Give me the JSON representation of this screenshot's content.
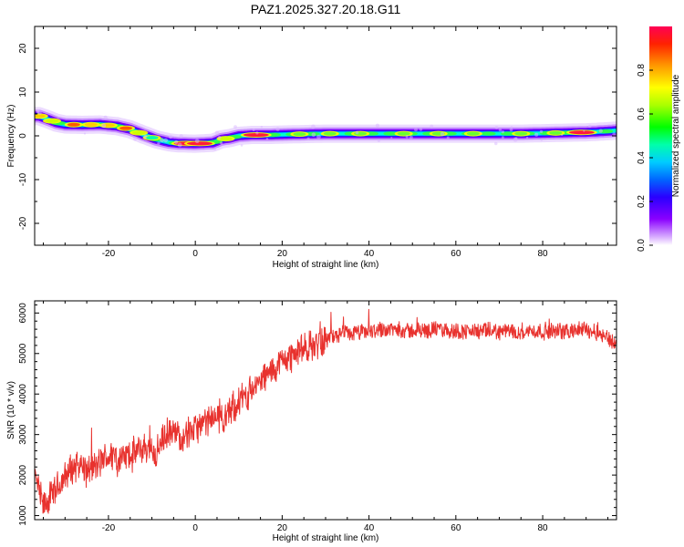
{
  "title": "PAZ1.2025.327.20.18.G11",
  "spectrogram": {
    "type": "heatmap",
    "xlabel": "Height of straight line (km)",
    "ylabel": "Frequency (Hz)",
    "xlim": [
      -37,
      97
    ],
    "ylim": [
      -25,
      25
    ],
    "xticks": [
      -20,
      0,
      20,
      40,
      60,
      80
    ],
    "yticks": [
      -20,
      -10,
      0,
      10,
      20
    ],
    "ridge": {
      "x": [
        -36,
        -34,
        -32,
        -30,
        -26,
        -22,
        -18,
        -15,
        -12,
        -9,
        -6,
        -4,
        0,
        4,
        6,
        8,
        10,
        13,
        17,
        20,
        25,
        30,
        35,
        40,
        45,
        50,
        55,
        60,
        65,
        70,
        75,
        80,
        85,
        90,
        94,
        97
      ],
      "freq": [
        4.5,
        3.8,
        3.0,
        2.6,
        2.5,
        2.6,
        2.2,
        1.5,
        0.3,
        -0.8,
        -1.5,
        -1.7,
        -1.8,
        -1.6,
        -0.8,
        -0.5,
        0.0,
        0.2,
        0.2,
        0.3,
        0.4,
        0.5,
        0.5,
        0.5,
        0.5,
        0.5,
        0.5,
        0.5,
        0.5,
        0.5,
        0.5,
        0.6,
        0.7,
        0.8,
        1.0,
        1.2
      ]
    },
    "peaks": [
      {
        "x": -36,
        "amp": 0.75
      },
      {
        "x": -33,
        "amp": 0.6
      },
      {
        "x": -28,
        "amp": 0.85
      },
      {
        "x": -24,
        "amp": 0.75
      },
      {
        "x": -20,
        "amp": 0.7
      },
      {
        "x": -16,
        "amp": 0.85
      },
      {
        "x": -13,
        "amp": 0.6
      },
      {
        "x": -10,
        "amp": 0.45
      },
      {
        "x": -2,
        "amp": 0.95
      },
      {
        "x": 1,
        "amp": 0.95
      },
      {
        "x": 7,
        "amp": 0.6
      },
      {
        "x": 14,
        "amp": 0.95
      },
      {
        "x": 24,
        "amp": 0.55
      },
      {
        "x": 31,
        "amp": 0.55
      },
      {
        "x": 38,
        "amp": 0.5
      },
      {
        "x": 48,
        "amp": 0.55
      },
      {
        "x": 56,
        "amp": 0.5
      },
      {
        "x": 64,
        "amp": 0.55
      },
      {
        "x": 75,
        "amp": 0.5
      },
      {
        "x": 83,
        "amp": 0.55
      },
      {
        "x": 89,
        "amp": 0.9
      }
    ]
  },
  "colorbar": {
    "label": "Normalized spectral amplitude",
    "ticks": [
      "0.0",
      "0.2",
      "0.4",
      "0.6",
      "0.8"
    ],
    "tick_values": [
      0.0,
      0.2,
      0.4,
      0.6,
      0.8
    ],
    "range": [
      0,
      1
    ]
  },
  "chart_data": [
    {
      "type": "heatmap",
      "title": "PAZ1.2025.327.20.18.G11",
      "xlabel": "Height of straight line (km)",
      "ylabel": "Frequency (Hz)",
      "xlim": [
        -37,
        97
      ],
      "ylim": [
        -25,
        25
      ],
      "colorbar_label": "Normalized spectral amplitude",
      "description_values": "ridge frequency vs height (see spectrogram.ridge)"
    },
    {
      "type": "line",
      "xlabel": "Height of straight line (km)",
      "ylabel": "SNR (10 * v/v)",
      "xlim": [
        -37,
        97
      ],
      "ylim": [
        900,
        6300
      ],
      "xticks": [
        -20,
        0,
        20,
        40,
        60,
        80
      ],
      "yticks": [
        1000,
        2000,
        3000,
        4000,
        5000,
        6000
      ],
      "color": "#e8322e",
      "series": [
        {
          "name": "SNR",
          "x": [
            -37,
            -35,
            -33,
            -31,
            -29,
            -27,
            -25,
            -23,
            -21,
            -19,
            -17,
            -15,
            -13,
            -11,
            -9,
            -7,
            -5,
            -3,
            -1,
            1,
            3,
            5,
            7,
            9,
            11,
            13,
            15,
            17,
            19,
            21,
            23,
            25,
            27,
            29,
            31,
            33,
            35,
            37,
            40,
            43,
            46,
            50,
            55,
            60,
            65,
            70,
            75,
            80,
            85,
            90,
            93,
            95,
            97
          ],
          "y": [
            2000,
            1200,
            1500,
            1800,
            2100,
            2300,
            2100,
            2200,
            2400,
            2500,
            2400,
            2500,
            2600,
            2700,
            2500,
            3000,
            3000,
            3000,
            3100,
            3200,
            3300,
            3500,
            3400,
            3700,
            3900,
            4100,
            4300,
            4500,
            4700,
            4900,
            5000,
            5100,
            5200,
            5300,
            5400,
            5450,
            5500,
            5500,
            5550,
            5600,
            5600,
            5550,
            5600,
            5550,
            5550,
            5550,
            5550,
            5550,
            5550,
            5600,
            5500,
            5400,
            5200
          ]
        }
      ]
    }
  ]
}
